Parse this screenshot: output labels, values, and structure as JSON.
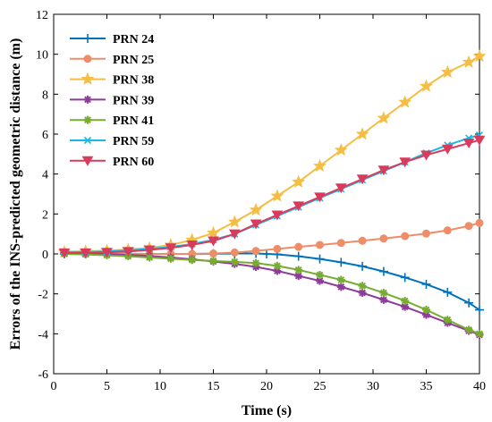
{
  "chart_data": {
    "type": "line",
    "title": "",
    "xlabel": "Time (s)",
    "ylabel": "Errors of the INS-predicted geometric distance (m)",
    "xlim": [
      0,
      40
    ],
    "ylim": [
      -6,
      12
    ],
    "xticks": [
      0,
      5,
      10,
      15,
      20,
      25,
      30,
      35,
      40
    ],
    "yticks": [
      -6,
      -4,
      -2,
      0,
      2,
      4,
      6,
      8,
      10,
      12
    ],
    "grid": false,
    "legend_position": "top-left",
    "series": [
      {
        "name": "PRN 24",
        "color": "#0072BD",
        "marker": "plus",
        "points": [
          [
            1,
            0
          ],
          [
            3,
            0
          ],
          [
            5,
            0
          ],
          [
            7,
            0
          ],
          [
            9,
            0
          ],
          [
            11,
            0
          ],
          [
            13,
            0
          ],
          [
            15,
            0.01
          ],
          [
            17,
            0.02
          ],
          [
            19,
            0.02
          ],
          [
            20,
            0
          ],
          [
            21,
            -0.02
          ],
          [
            23,
            -0.12
          ],
          [
            25,
            -0.25
          ],
          [
            27,
            -0.42
          ],
          [
            29,
            -0.62
          ],
          [
            31,
            -0.88
          ],
          [
            33,
            -1.18
          ],
          [
            35,
            -1.52
          ],
          [
            37,
            -1.92
          ],
          [
            39,
            -2.45
          ],
          [
            40,
            -2.8
          ]
        ]
      },
      {
        "name": "PRN 25",
        "color": "#EE8D67",
        "marker": "circle",
        "points": [
          [
            1,
            0.05
          ],
          [
            3,
            0.03
          ],
          [
            5,
            0.02
          ],
          [
            7,
            0.01
          ],
          [
            9,
            0
          ],
          [
            11,
            0
          ],
          [
            13,
            0
          ],
          [
            15,
            0.02
          ],
          [
            17,
            0.07
          ],
          [
            19,
            0.15
          ],
          [
            21,
            0.25
          ],
          [
            23,
            0.35
          ],
          [
            25,
            0.45
          ],
          [
            27,
            0.55
          ],
          [
            29,
            0.66
          ],
          [
            31,
            0.77
          ],
          [
            33,
            0.89
          ],
          [
            35,
            1.02
          ],
          [
            37,
            1.18
          ],
          [
            39,
            1.4
          ],
          [
            40,
            1.55
          ]
        ]
      },
      {
        "name": "PRN 38",
        "color": "#F5BD42",
        "marker": "star",
        "points": [
          [
            1,
            0.1
          ],
          [
            3,
            0.13
          ],
          [
            5,
            0.17
          ],
          [
            7,
            0.22
          ],
          [
            9,
            0.3
          ],
          [
            11,
            0.45
          ],
          [
            13,
            0.7
          ],
          [
            15,
            1.05
          ],
          [
            17,
            1.6
          ],
          [
            19,
            2.2
          ],
          [
            21,
            2.9
          ],
          [
            23,
            3.6
          ],
          [
            25,
            4.4
          ],
          [
            27,
            5.2
          ],
          [
            29,
            6.0
          ],
          [
            31,
            6.8
          ],
          [
            33,
            7.6
          ],
          [
            35,
            8.4
          ],
          [
            37,
            9.1
          ],
          [
            39,
            9.6
          ],
          [
            40,
            9.9
          ]
        ]
      },
      {
        "name": "PRN 39",
        "color": "#8E3B9B",
        "marker": "asterisk",
        "points": [
          [
            1,
            0.05
          ],
          [
            3,
            0.02
          ],
          [
            5,
            0
          ],
          [
            7,
            -0.05
          ],
          [
            9,
            -0.1
          ],
          [
            11,
            -0.18
          ],
          [
            13,
            -0.27
          ],
          [
            15,
            -0.38
          ],
          [
            17,
            -0.5
          ],
          [
            19,
            -0.65
          ],
          [
            21,
            -0.85
          ],
          [
            23,
            -1.1
          ],
          [
            25,
            -1.35
          ],
          [
            27,
            -1.65
          ],
          [
            29,
            -1.95
          ],
          [
            31,
            -2.3
          ],
          [
            33,
            -2.65
          ],
          [
            35,
            -3.05
          ],
          [
            37,
            -3.45
          ],
          [
            39,
            -3.85
          ],
          [
            40,
            -4.05
          ]
        ]
      },
      {
        "name": "PRN 41",
        "color": "#77AC30",
        "marker": "asterisk",
        "points": [
          [
            1,
            0.0
          ],
          [
            3,
            -0.03
          ],
          [
            5,
            -0.07
          ],
          [
            7,
            -0.12
          ],
          [
            9,
            -0.18
          ],
          [
            11,
            -0.24
          ],
          [
            13,
            -0.3
          ],
          [
            15,
            -0.35
          ],
          [
            17,
            -0.4
          ],
          [
            19,
            -0.46
          ],
          [
            21,
            -0.6
          ],
          [
            23,
            -0.8
          ],
          [
            25,
            -1.05
          ],
          [
            27,
            -1.3
          ],
          [
            29,
            -1.6
          ],
          [
            31,
            -1.95
          ],
          [
            33,
            -2.35
          ],
          [
            35,
            -2.8
          ],
          [
            37,
            -3.3
          ],
          [
            39,
            -3.8
          ],
          [
            40,
            -4.0
          ]
        ]
      },
      {
        "name": "PRN 59",
        "color": "#19B7E6",
        "marker": "x",
        "points": [
          [
            1,
            0.1
          ],
          [
            3,
            0.1
          ],
          [
            5,
            0.12
          ],
          [
            7,
            0.18
          ],
          [
            9,
            0.25
          ],
          [
            11,
            0.35
          ],
          [
            13,
            0.5
          ],
          [
            15,
            0.7
          ],
          [
            17,
            1.0
          ],
          [
            19,
            1.45
          ],
          [
            21,
            1.9
          ],
          [
            23,
            2.35
          ],
          [
            25,
            2.8
          ],
          [
            27,
            3.25
          ],
          [
            29,
            3.7
          ],
          [
            31,
            4.15
          ],
          [
            33,
            4.6
          ],
          [
            35,
            5.05
          ],
          [
            37,
            5.45
          ],
          [
            39,
            5.8
          ],
          [
            40,
            5.95
          ]
        ]
      },
      {
        "name": "PRN 60",
        "color": "#D93B5C",
        "marker": "triangle-down",
        "points": [
          [
            1,
            0.05
          ],
          [
            3,
            0.05
          ],
          [
            5,
            0.08
          ],
          [
            7,
            0.12
          ],
          [
            9,
            0.2
          ],
          [
            11,
            0.3
          ],
          [
            13,
            0.45
          ],
          [
            15,
            0.65
          ],
          [
            17,
            1.0
          ],
          [
            19,
            1.5
          ],
          [
            21,
            1.95
          ],
          [
            23,
            2.4
          ],
          [
            25,
            2.85
          ],
          [
            27,
            3.3
          ],
          [
            29,
            3.75
          ],
          [
            31,
            4.2
          ],
          [
            33,
            4.6
          ],
          [
            35,
            4.95
          ],
          [
            37,
            5.25
          ],
          [
            39,
            5.55
          ],
          [
            40,
            5.7
          ]
        ]
      }
    ]
  }
}
